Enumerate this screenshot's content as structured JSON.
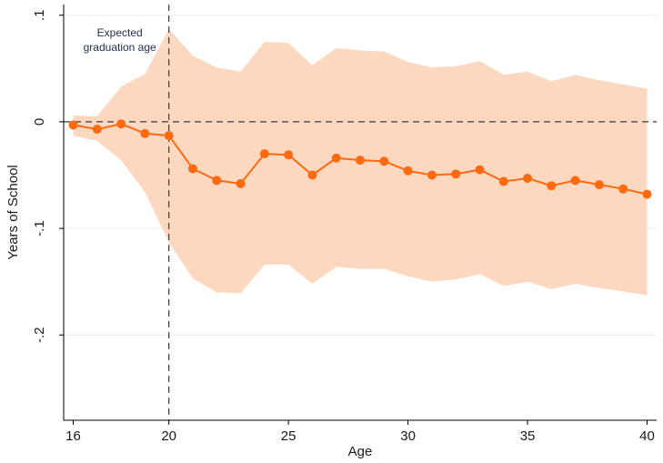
{
  "chart_data": {
    "type": "line",
    "title": "",
    "xlabel": "Age",
    "ylabel": "Years of School",
    "xlim": [
      15.6,
      40.4
    ],
    "ylim": [
      -0.28,
      0.11
    ],
    "x_ticks": [
      16,
      20,
      25,
      30,
      35,
      40
    ],
    "x_tick_labels": [
      "16",
      "20",
      "25",
      "30",
      "35",
      "40"
    ],
    "y_ticks": [
      0.1,
      0,
      -0.1,
      -0.2
    ],
    "y_tick_labels": [
      ".1",
      "0",
      "-.1",
      "-.2"
    ],
    "grid": "horizontal",
    "reference_lines": {
      "horizontal_y": 0,
      "vertical_x": 20
    },
    "annotation": [
      "Expected",
      "graduation age"
    ],
    "colors": {
      "line": "#ff6a10",
      "ci_band": "#fdd8c0",
      "reference": "#3a3a3a",
      "grid": "#ebebeb"
    },
    "x": [
      16,
      17,
      18,
      19,
      20,
      21,
      22,
      23,
      24,
      25,
      26,
      27,
      28,
      29,
      30,
      31,
      32,
      33,
      34,
      35,
      36,
      37,
      38,
      39,
      40
    ],
    "series": [
      {
        "values": [
          -0.003,
          -0.007,
          -0.002,
          -0.011,
          -0.013,
          -0.044,
          -0.055,
          -0.058,
          -0.03,
          -0.031,
          -0.05,
          -0.034,
          -0.036,
          -0.037,
          -0.046,
          -0.05,
          -0.049,
          -0.045,
          -0.056,
          -0.053,
          -0.06,
          -0.055,
          -0.059,
          -0.063,
          -0.068
        ],
        "ci_lower": [
          -0.013,
          -0.018,
          -0.036,
          -0.066,
          -0.113,
          -0.147,
          -0.16,
          -0.161,
          -0.134,
          -0.134,
          -0.152,
          -0.136,
          -0.138,
          -0.138,
          -0.145,
          -0.15,
          -0.148,
          -0.143,
          -0.154,
          -0.15,
          -0.157,
          -0.152,
          -0.156,
          -0.159,
          -0.163
        ],
        "ci_upper": [
          0.006,
          0.005,
          0.033,
          0.045,
          0.087,
          0.062,
          0.051,
          0.047,
          0.075,
          0.074,
          0.053,
          0.069,
          0.067,
          0.066,
          0.056,
          0.051,
          0.052,
          0.057,
          0.044,
          0.047,
          0.038,
          0.044,
          0.039,
          0.035,
          0.031
        ]
      }
    ]
  }
}
